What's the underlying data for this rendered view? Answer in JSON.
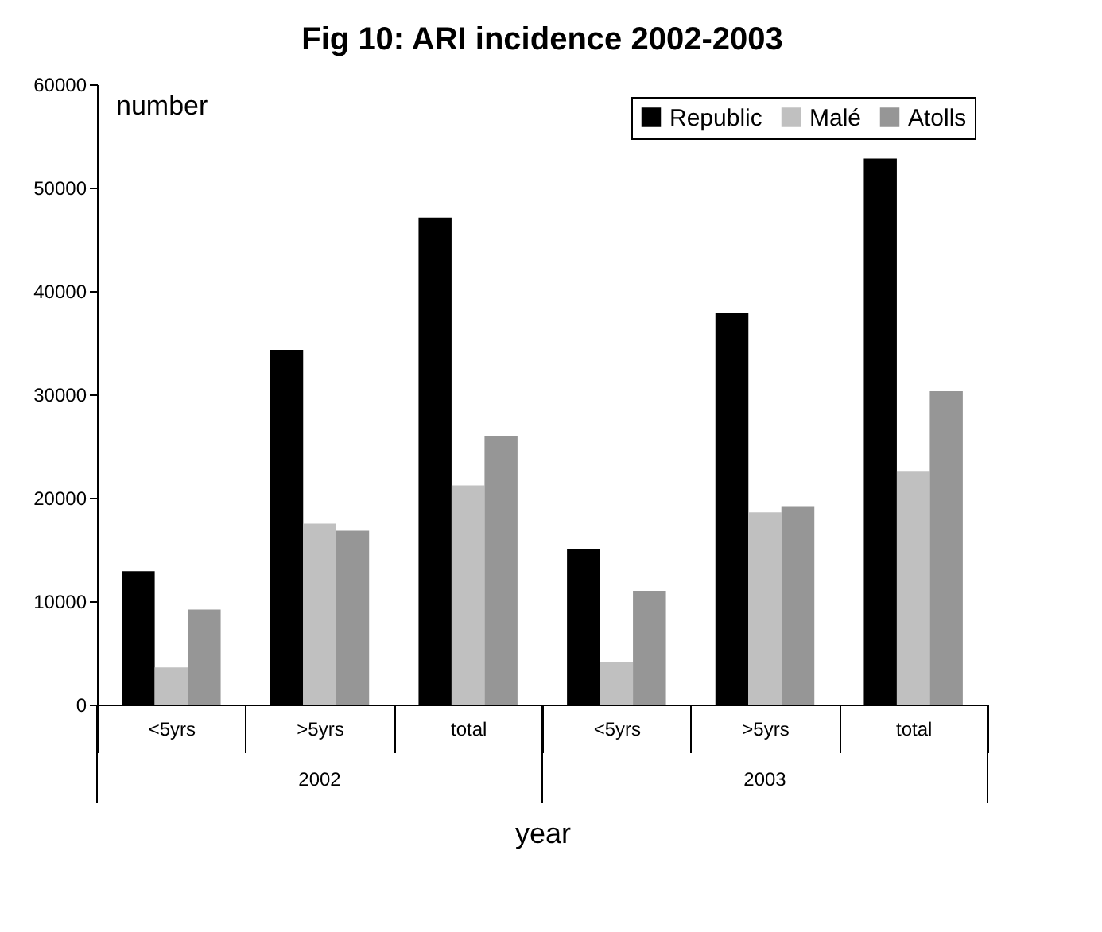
{
  "chart_data": {
    "type": "bar",
    "title": "Fig 10: ARI incidence 2002-2003",
    "xlabel": "year",
    "ylabel": "number",
    "categories": [
      "<5yrs",
      ">5yrs",
      "total",
      "<5yrs",
      ">5yrs",
      "total"
    ],
    "annotations": [
      "2002",
      "2003"
    ],
    "series": [
      {
        "name": "Republic",
        "color": "#000000",
        "values": [
          12900,
          34300,
          47100,
          15000,
          37900,
          52800
        ]
      },
      {
        "name": "Malé",
        "color": "#c0c0c0",
        "values": [
          3600,
          17500,
          21200,
          4100,
          18600,
          22600
        ]
      },
      {
        "name": "Atolls",
        "color": "#969696",
        "values": [
          9200,
          16800,
          26000,
          11000,
          19200,
          30300
        ]
      }
    ],
    "ylim": [
      0,
      60000
    ],
    "yticks": [
      0,
      10000,
      20000,
      30000,
      40000,
      50000,
      60000
    ],
    "grid": false,
    "legend": "top right"
  }
}
